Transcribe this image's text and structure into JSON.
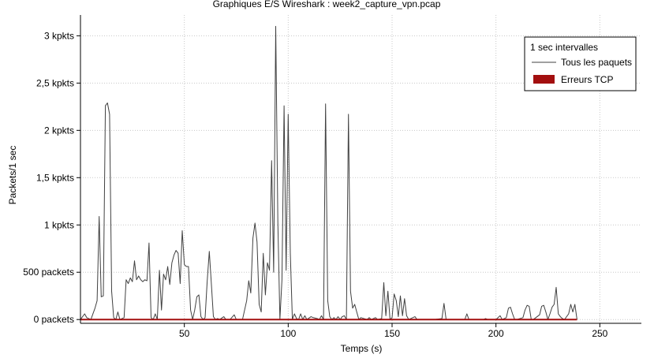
{
  "chart_data": {
    "type": "line",
    "title": "Graphiques E/S Wireshark : week2_capture_vpn.pcap",
    "xlabel": "Temps (s)",
    "ylabel": "Packets/1 sec",
    "xlim": [
      0,
      270
    ],
    "ylim": [
      -40,
      3220
    ],
    "x_ticks": [
      50,
      100,
      150,
      200,
      250
    ],
    "y_ticks": [
      0,
      500,
      1000,
      1500,
      2000,
      2500,
      3000
    ],
    "y_tick_labels": [
      "0 packets",
      "500 packets",
      "1 kpkts",
      "1,5 kpkts",
      "2 kpkts",
      "2,5 kpkts",
      "3 kpkts"
    ],
    "grid": true,
    "legend": {
      "placement": "top-right",
      "title": "1 sec intervalles",
      "entries": [
        {
          "label": "Tous les paquets",
          "style": "line",
          "color": "#404040"
        },
        {
          "label": "Erreurs TCP",
          "style": "box",
          "color": "#a30f0f"
        }
      ]
    },
    "series": [
      {
        "name": "Tous les paquets",
        "color": "#404040",
        "points": [
          [
            0,
            0
          ],
          [
            2,
            60
          ],
          [
            3,
            20
          ],
          [
            5,
            0
          ],
          [
            7,
            120
          ],
          [
            8,
            200
          ],
          [
            9,
            1090
          ],
          [
            10,
            240
          ],
          [
            11,
            250
          ],
          [
            12,
            2260
          ],
          [
            13,
            2290
          ],
          [
            14,
            2170
          ],
          [
            15,
            300
          ],
          [
            16,
            20
          ],
          [
            17,
            0
          ],
          [
            18,
            80
          ],
          [
            19,
            0
          ],
          [
            21,
            20
          ],
          [
            22,
            420
          ],
          [
            23,
            380
          ],
          [
            24,
            440
          ],
          [
            25,
            400
          ],
          [
            26,
            620
          ],
          [
            27,
            420
          ],
          [
            28,
            460
          ],
          [
            29,
            420
          ],
          [
            30,
            400
          ],
          [
            31,
            420
          ],
          [
            32,
            410
          ],
          [
            33,
            810
          ],
          [
            34,
            20
          ],
          [
            35,
            0
          ],
          [
            36,
            60
          ],
          [
            37,
            0
          ],
          [
            38,
            520
          ],
          [
            39,
            100
          ],
          [
            40,
            480
          ],
          [
            41,
            420
          ],
          [
            42,
            560
          ],
          [
            43,
            370
          ],
          [
            44,
            600
          ],
          [
            45,
            680
          ],
          [
            46,
            730
          ],
          [
            47,
            700
          ],
          [
            48,
            380
          ],
          [
            49,
            940
          ],
          [
            50,
            580
          ],
          [
            51,
            560
          ],
          [
            52,
            560
          ],
          [
            53,
            100
          ],
          [
            54,
            0
          ],
          [
            55,
            100
          ],
          [
            56,
            240
          ],
          [
            57,
            260
          ],
          [
            58,
            30
          ],
          [
            59,
            0
          ],
          [
            60,
            20
          ],
          [
            61,
            400
          ],
          [
            62,
            720
          ],
          [
            63,
            380
          ],
          [
            64,
            30
          ],
          [
            65,
            0
          ],
          [
            66,
            10
          ],
          [
            67,
            0
          ],
          [
            69,
            30
          ],
          [
            70,
            0
          ],
          [
            72,
            0
          ],
          [
            74,
            50
          ],
          [
            75,
            0
          ],
          [
            78,
            0
          ],
          [
            80,
            200
          ],
          [
            81,
            410
          ],
          [
            82,
            280
          ],
          [
            83,
            860
          ],
          [
            84,
            1020
          ],
          [
            85,
            820
          ],
          [
            86,
            160
          ],
          [
            87,
            80
          ],
          [
            88,
            700
          ],
          [
            89,
            260
          ],
          [
            90,
            600
          ],
          [
            91,
            520
          ],
          [
            92,
            1680
          ],
          [
            93,
            500
          ],
          [
            94,
            3100
          ],
          [
            95,
            1030
          ],
          [
            96,
            0
          ],
          [
            97,
            420
          ],
          [
            98,
            2260
          ],
          [
            99,
            520
          ],
          [
            100,
            2170
          ],
          [
            101,
            700
          ],
          [
            102,
            0
          ],
          [
            103,
            60
          ],
          [
            104,
            10
          ],
          [
            105,
            0
          ],
          [
            106,
            60
          ],
          [
            107,
            0
          ],
          [
            108,
            40
          ],
          [
            109,
            0
          ],
          [
            111,
            30
          ],
          [
            112,
            20
          ],
          [
            114,
            10
          ],
          [
            115,
            0
          ],
          [
            116,
            40
          ],
          [
            117,
            0
          ],
          [
            118,
            2280
          ],
          [
            119,
            200
          ],
          [
            120,
            30
          ],
          [
            121,
            0
          ],
          [
            122,
            20
          ],
          [
            123,
            0
          ],
          [
            124,
            30
          ],
          [
            125,
            0
          ],
          [
            126,
            30
          ],
          [
            127,
            40
          ],
          [
            128,
            0
          ],
          [
            129,
            2170
          ],
          [
            130,
            300
          ],
          [
            131,
            120
          ],
          [
            132,
            160
          ],
          [
            133,
            80
          ],
          [
            134,
            0
          ],
          [
            135,
            20
          ],
          [
            138,
            0
          ],
          [
            139,
            20
          ],
          [
            140,
            0
          ],
          [
            142,
            20
          ],
          [
            143,
            0
          ],
          [
            145,
            10
          ],
          [
            146,
            390
          ],
          [
            147,
            40
          ],
          [
            148,
            300
          ],
          [
            149,
            0
          ],
          [
            150,
            20
          ],
          [
            151,
            270
          ],
          [
            152,
            200
          ],
          [
            153,
            30
          ],
          [
            154,
            250
          ],
          [
            155,
            40
          ],
          [
            156,
            220
          ],
          [
            157,
            40
          ],
          [
            158,
            0
          ],
          [
            161,
            30
          ],
          [
            162,
            0
          ],
          [
            170,
            0
          ],
          [
            174,
            10
          ],
          [
            175,
            170
          ],
          [
            176,
            0
          ],
          [
            185,
            0
          ],
          [
            186,
            60
          ],
          [
            187,
            0
          ],
          [
            194,
            0
          ],
          [
            195,
            10
          ],
          [
            196,
            0
          ],
          [
            200,
            0
          ],
          [
            202,
            40
          ],
          [
            203,
            0
          ],
          [
            205,
            20
          ],
          [
            206,
            120
          ],
          [
            207,
            130
          ],
          [
            208,
            60
          ],
          [
            209,
            0
          ],
          [
            210,
            0
          ],
          [
            213,
            20
          ],
          [
            214,
            100
          ],
          [
            215,
            150
          ],
          [
            216,
            140
          ],
          [
            217,
            0
          ],
          [
            218,
            0
          ],
          [
            221,
            50
          ],
          [
            222,
            140
          ],
          [
            223,
            150
          ],
          [
            224,
            80
          ],
          [
            225,
            0
          ],
          [
            226,
            60
          ],
          [
            227,
            130
          ],
          [
            228,
            160
          ],
          [
            229,
            340
          ],
          [
            230,
            60
          ],
          [
            231,
            30
          ],
          [
            232,
            10
          ],
          [
            233,
            0
          ],
          [
            235,
            60
          ],
          [
            236,
            160
          ],
          [
            237,
            80
          ],
          [
            238,
            160
          ],
          [
            239,
            0
          ]
        ]
      },
      {
        "name": "Erreurs TCP",
        "color": "#a30f0f",
        "points": [
          [
            0,
            0
          ],
          [
            239,
            0
          ]
        ]
      }
    ]
  }
}
